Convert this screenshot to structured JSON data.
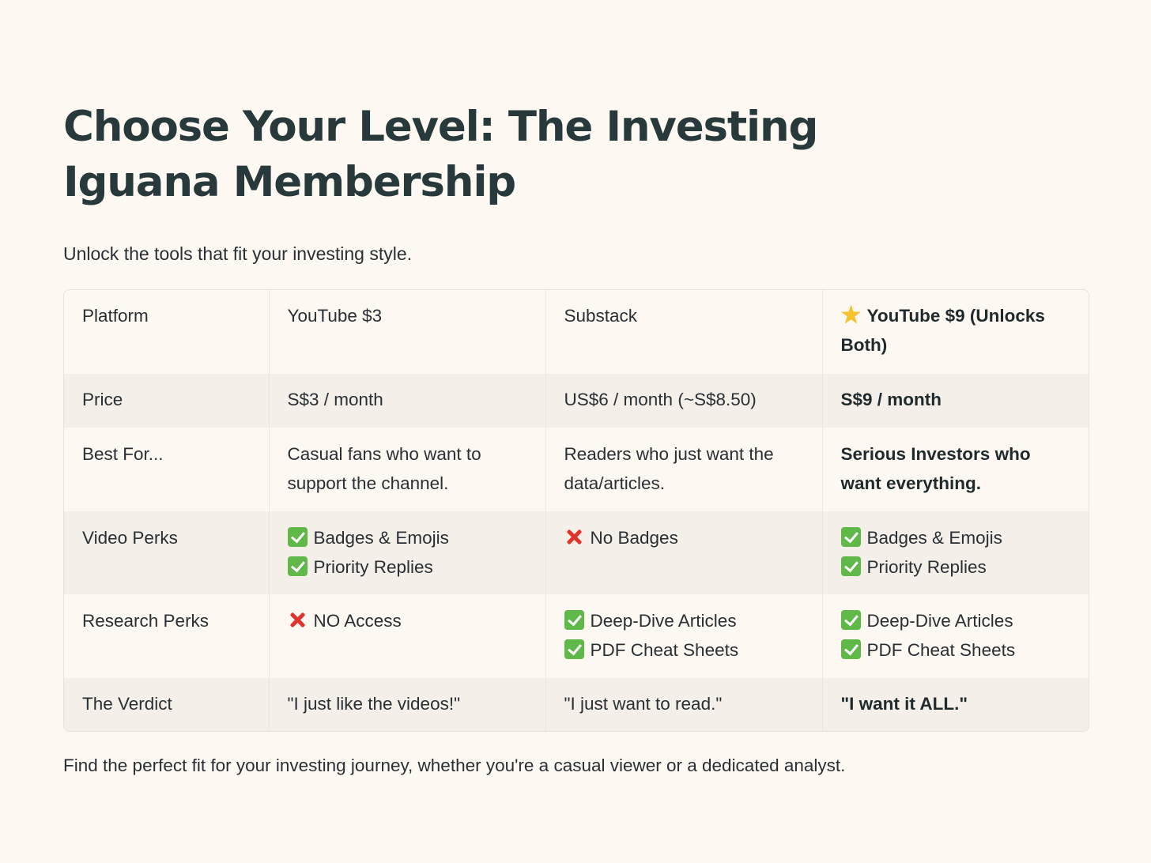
{
  "title": "Choose Your Level: The Investing Iguana Membership",
  "subtitle": "Unlock the tools that fit your investing style.",
  "table": {
    "header": {
      "label": "Platform",
      "col1": "YouTube $3",
      "col2": "Substack",
      "col3": "YouTube $9  (Unlocks Both)",
      "col3_icon": "star-icon"
    },
    "price": {
      "label": "Price",
      "col1": "S$3 / month",
      "col2": "US$6 / month (~S$8.50)",
      "col3": "S$9 / month"
    },
    "best_for": {
      "label": "Best For...",
      "col1": "Casual fans who want to support the channel.",
      "col2": "Readers who just want the data/articles.",
      "col3": "Serious Investors who want everything."
    },
    "video_perks": {
      "label": "Video Perks",
      "col1": [
        "Badges & Emojis",
        "Priority Replies"
      ],
      "col2": [
        "No Badges"
      ],
      "col3": [
        "Badges & Emojis",
        "Priority Replies"
      ]
    },
    "research_perks": {
      "label": "Research Perks",
      "col1": [
        "NO Access"
      ],
      "col2": [
        "Deep-Dive Articles",
        "PDF Cheat Sheets"
      ],
      "col3": [
        "Deep-Dive Articles",
        "PDF Cheat Sheets"
      ]
    },
    "verdict": {
      "label": "The Verdict",
      "col1": "\"I just like the videos!\"",
      "col2": "\"I just want to read.\"",
      "col3": "\"I want it ALL.\""
    }
  },
  "icons": {
    "check": "check-mark-icon",
    "cross": "cross-mark-icon"
  },
  "colors": {
    "background": "#fdf8f2",
    "title": "#27393b",
    "alt_row": "#f4efe9",
    "check": "#5fb848",
    "cross": "#e0332e",
    "star": "#f6c230"
  },
  "footer": "Find the perfect fit for your investing journey, whether you're a casual viewer or a dedicated analyst."
}
